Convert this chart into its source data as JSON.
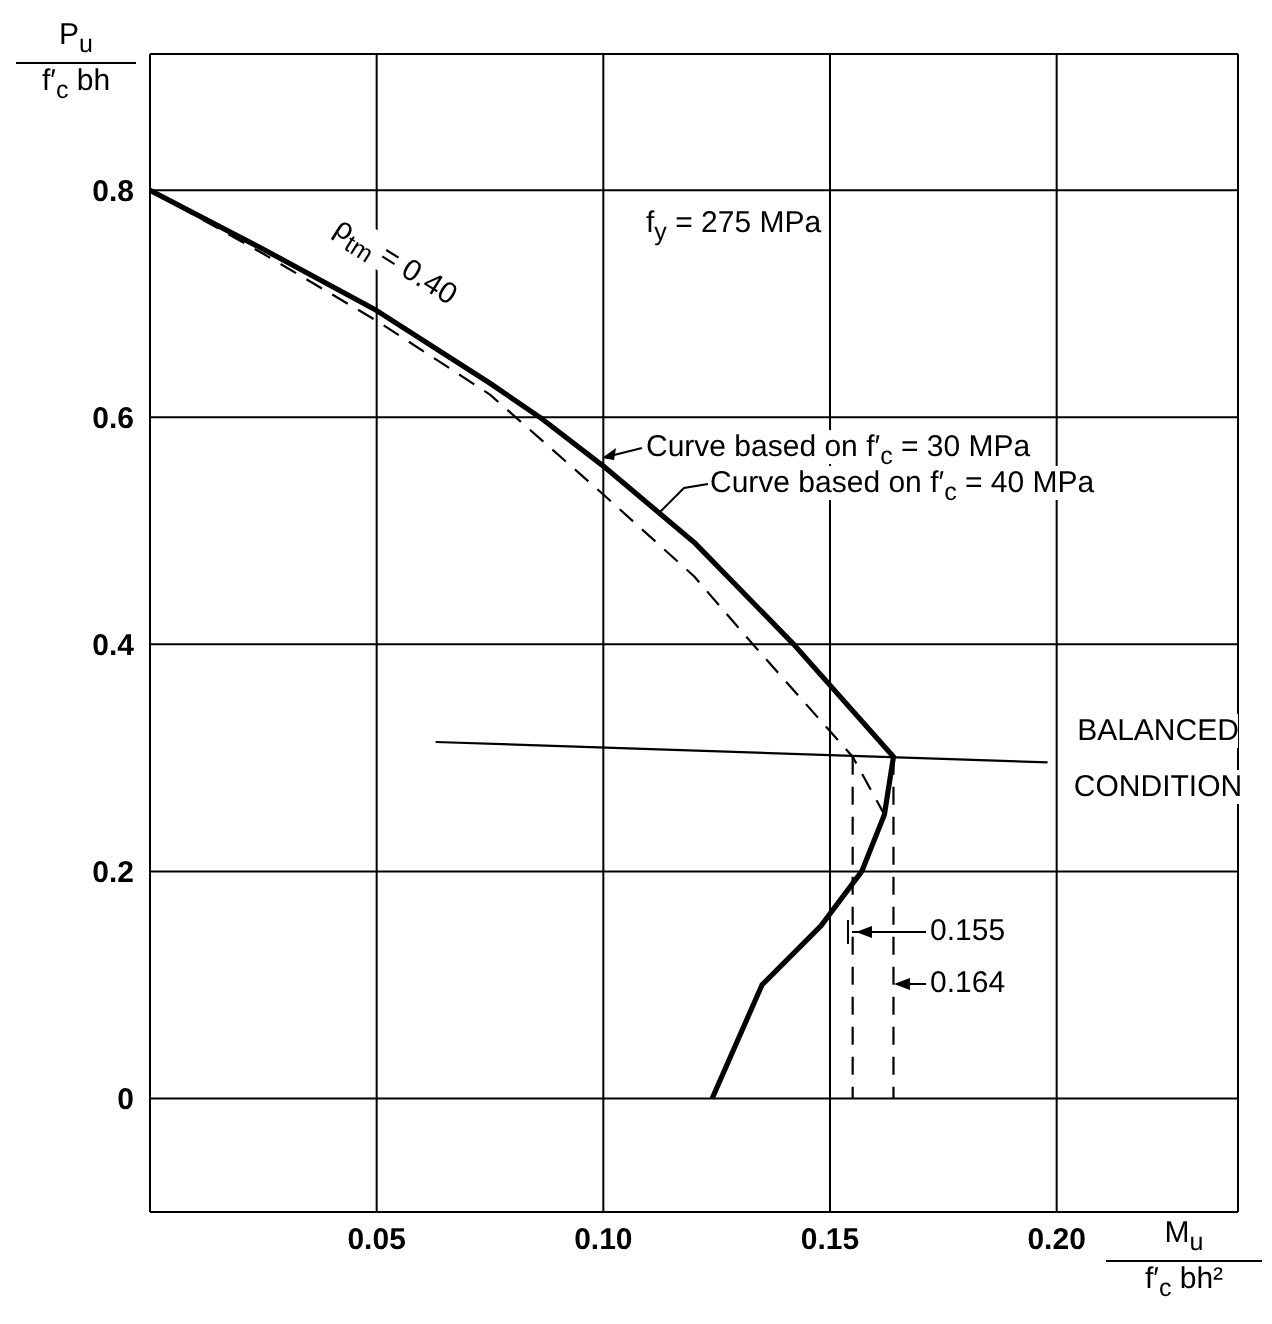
{
  "chart_data": {
    "type": "line",
    "xlabel": "M$_{u}$\nf′$_{c}$ bh²",
    "ylabel": "P$_{u}$\nf′$_{c}$ bh",
    "xlim": [
      0,
      0.24
    ],
    "ylim": [
      -0.1,
      0.92
    ],
    "xticks": [
      0.05,
      {
        "value": 0.1,
        "label": "0.10"
      },
      0.15,
      {
        "value": 0.2,
        "label": "0.20"
      }
    ],
    "yticks": [
      0,
      0.2,
      0.4,
      0.6,
      0.8
    ],
    "grid": true,
    "marker": "none",
    "series": [
      {
        "color": "#000000",
        "line_style": "solid",
        "x": [
          0,
          0.025,
          0.05,
          0.075,
          0.086,
          0.1,
          0.12,
          0.142,
          0.164,
          0.162,
          0.157,
          0.148,
          0.135,
          0.124
        ],
        "values": [
          0.8,
          0.748,
          0.694,
          0.63,
          0.6,
          0.557,
          0.49,
          0.4,
          0.301,
          0.25,
          0.2,
          0.152,
          0.1,
          0
        ]
      },
      {
        "color": "#000000",
        "line_style": "dashed",
        "x": [
          0,
          0.025,
          0.05,
          0.075,
          0.1,
          0.12,
          0.133,
          0.155,
          0.162
        ],
        "values": [
          0.8,
          0.744,
          0.685,
          0.62,
          0.532,
          0.46,
          0.4,
          0.301,
          0.25
        ]
      },
      {
        "color": "#000000",
        "line_style": "solid",
        "x": [
          0.063,
          0.198
        ],
        "values": [
          0.314,
          0.296
        ]
      },
      {
        "color": "#000000",
        "line_style": "dashed",
        "x": [
          0.155,
          0.155
        ],
        "values": [
          0.301,
          0
        ]
      },
      {
        "color": "#000000",
        "line_style": "dashed",
        "x": [
          0.164,
          0.164
        ],
        "values": [
          0.301,
          0
        ]
      }
    ],
    "annotations": [
      "ρ$_{tm}$ = 0.40",
      "f$_{y}$ = 275 MPa",
      "Curve based on f′$_{c}$ = 30 MPa",
      "Curve based on f′$_{c}$ = 40 MPa",
      "BALANCED CONDITION",
      "0.155",
      "0.164"
    ]
  }
}
